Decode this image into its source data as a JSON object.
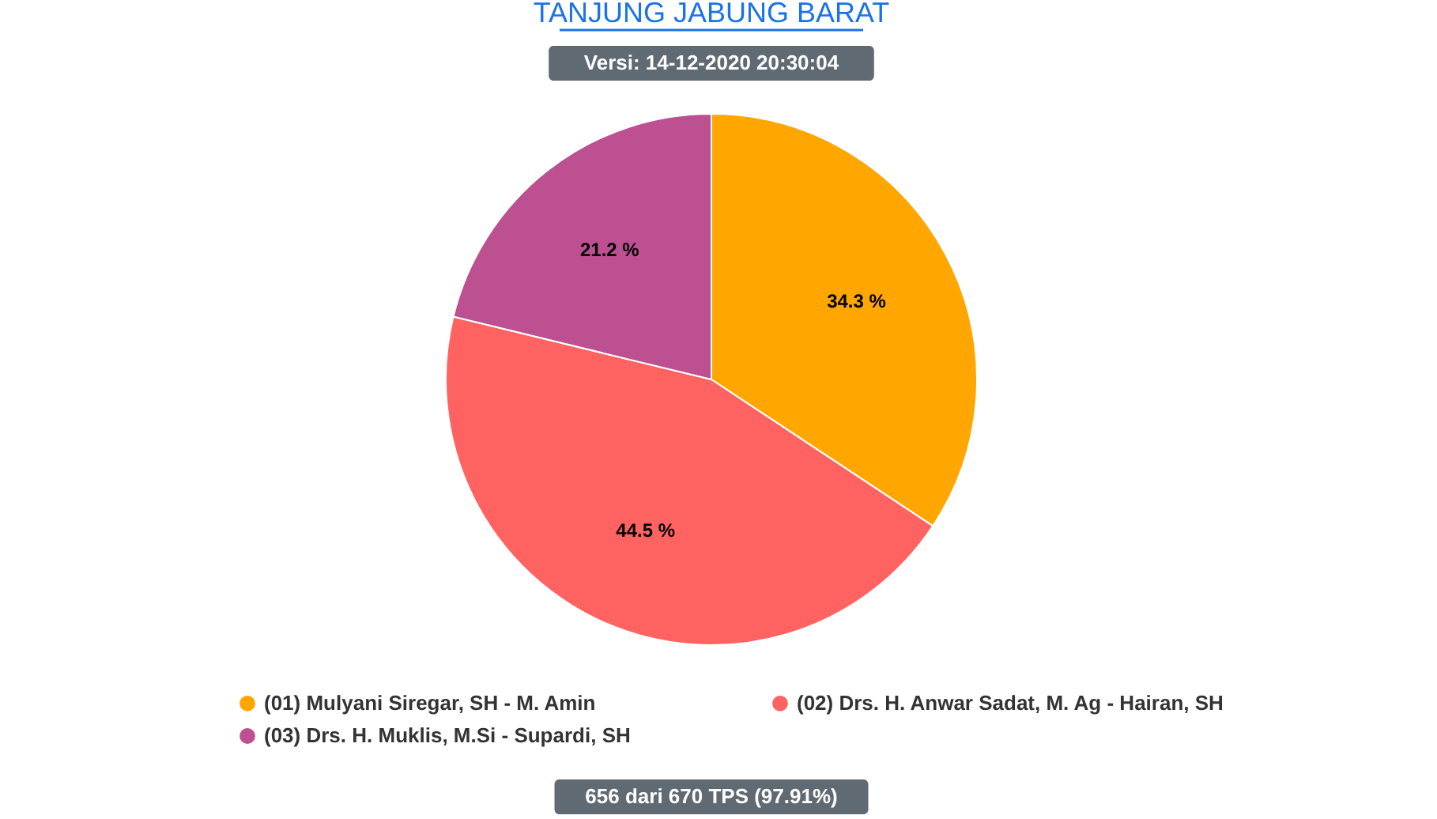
{
  "chart_data": {
    "type": "pie",
    "title": "TANJUNG JABUNG BARAT",
    "subtitle": "Versi: 14-12-2020 20:30:04",
    "categories": [
      "(01) Mulyani Siregar, SH - M. Amin",
      "(02) Drs. H. Anwar Sadat, M. Ag - Hairan, SH",
      "(03) Drs. H. Muklis, M.Si - Supardi, SH"
    ],
    "values": [
      34.3,
      44.5,
      21.2
    ],
    "colors": [
      "#ffa600",
      "#ff6361",
      "#bc5090"
    ],
    "value_labels": [
      "34.3 %",
      "44.5 %",
      "21.2 %"
    ],
    "legend": "bottom",
    "annotations": [
      "656 dari 670 TPS (97.91%)"
    ]
  }
}
